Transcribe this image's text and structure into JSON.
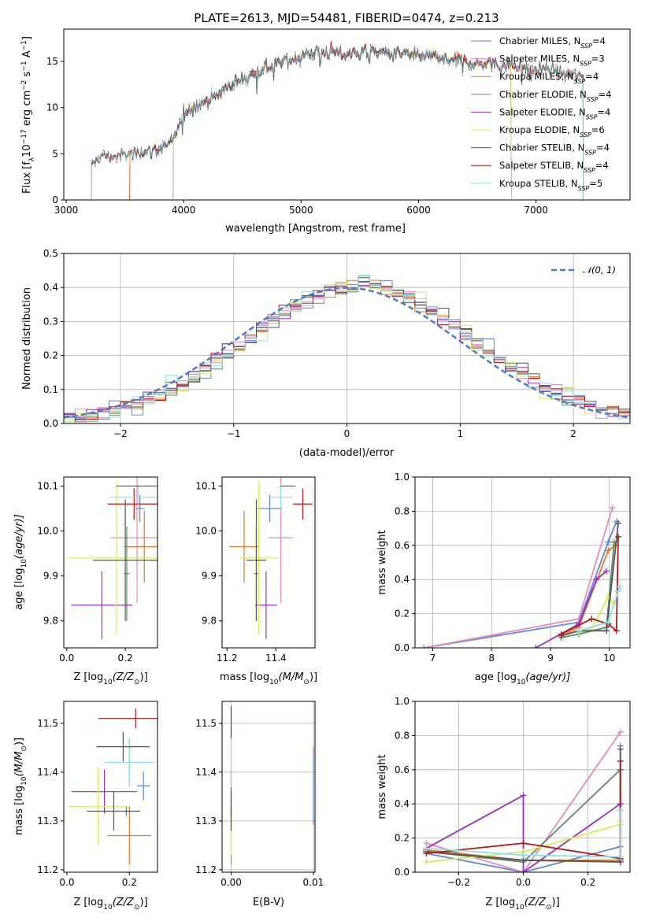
{
  "colors": {
    "Chabrier MILES": "#5f86d8",
    "Salpeter MILES": "#e58bc0",
    "Kroupa MILES": "#e07a2a",
    "Chabrier ELODIE": "#5c8a6a",
    "Salpeter ELODIE": "#9b30c0",
    "Kroupa ELODIE": "#d8ec5a",
    "Chabrier STELIB": "#555555",
    "Salpeter STELIB": "#b01818",
    "Kroupa STELIB": "#8ee0ea"
  },
  "chart_data": [
    {
      "type": "line",
      "id": "spectrum",
      "title": "PLATE=2613, MJD=54481, FIBERID=0474, z=0.213",
      "xlabel": "wavelength [Angstrom, rest frame]",
      "ylabel": "Flux [f",
      "ylabel_sub": "λ",
      "ylabel_rest": "10",
      "ylabel_exp1": "−17",
      "ylabel_unit": " erg cm",
      "ylabel_exp2": "−2",
      "ylabel_s": " s",
      "ylabel_exp3": "−1",
      "ylabel_A": " A",
      "ylabel_exp4": "−1",
      "ylabel_end": "]",
      "xlim": [
        2980,
        7800
      ],
      "ylim": [
        0,
        18.5
      ],
      "xticks": [
        "3000",
        "4000",
        "5000",
        "6000",
        "7000"
      ],
      "yticks": [
        "0",
        "5",
        "10",
        "15"
      ],
      "grid": false,
      "legend_position": "upper-right",
      "legend": [
        {
          "model": "Chabrier MILES",
          "label": "Chabrier MILES, N",
          "sub": "SSP",
          "tail": "=4"
        },
        {
          "model": "Salpeter MILES",
          "label": "Salpeter MILES, N",
          "sub": "SSP",
          "tail": "=3"
        },
        {
          "model": "Kroupa MILES",
          "label": "Kroupa MILES, N",
          "sub": "SSP",
          "tail": "=4"
        },
        {
          "model": "Chabrier ELODIE",
          "label": "Chabrier ELODIE, N",
          "sub": "SSP",
          "tail": "=4"
        },
        {
          "model": "Salpeter ELODIE",
          "label": "Salpeter ELODIE, N",
          "sub": "SSP",
          "tail": "=4"
        },
        {
          "model": "Kroupa ELODIE",
          "label": "Kroupa ELODIE, N",
          "sub": "SSP",
          "tail": "=6"
        },
        {
          "model": "Chabrier STELIB",
          "label": "Chabrier STELIB, N",
          "sub": "SSP",
          "tail": "=4"
        },
        {
          "model": "Salpeter STELIB",
          "label": "Salpeter STELIB, N",
          "sub": "SSP",
          "tail": "=4"
        },
        {
          "model": "Kroupa STELIB",
          "label": "Kroupa STELIB, N",
          "sub": "SSP",
          "tail": "=5"
        }
      ],
      "continuum": {
        "x": [
          3215,
          3300,
          3400,
          3500,
          3600,
          3700,
          3800,
          3900,
          3950,
          4000,
          4100,
          4200,
          4300,
          4400,
          4500,
          4600,
          4700,
          4800,
          4900,
          5000,
          5100,
          5200,
          5300,
          5400,
          5500,
          5600,
          5700,
          5800,
          5900,
          6000,
          6100,
          6200,
          6300,
          6400,
          6500,
          6600,
          6700,
          6800,
          6900,
          7000,
          7100,
          7200,
          7300,
          7400
        ],
        "y": [
          3.6,
          4.8,
          4.7,
          4.8,
          5.2,
          5.3,
          5.6,
          6.2,
          7.5,
          9.5,
          10.2,
          10.8,
          11.5,
          12.5,
          13.0,
          13.8,
          14.2,
          14.8,
          15.2,
          15.6,
          15.9,
          16.1,
          15.9,
          15.8,
          16.0,
          16.1,
          16.0,
          15.8,
          15.8,
          15.5,
          15.7,
          15.3,
          15.1,
          15.0,
          14.7,
          14.9,
          14.5,
          14.7,
          14.3,
          14.2,
          14.2,
          13.8,
          13.6,
          13.4
        ]
      },
      "model_ranges": {
        "Chabrier MILES": [
          3540,
          7410
        ],
        "Salpeter MILES": [
          3540,
          7410
        ],
        "Kroupa MILES": [
          3540,
          7410
        ],
        "Chabrier ELODIE": [
          3910,
          6790
        ],
        "Salpeter ELODIE": [
          3910,
          6790
        ],
        "Kroupa ELODIE": [
          3910,
          6790
        ],
        "Chabrier STELIB": [
          3215,
          7400
        ],
        "Salpeter STELIB": [
          3215,
          7400
        ],
        "Kroupa STELIB": [
          3215,
          7400
        ]
      }
    },
    {
      "type": "bar",
      "id": "residual-histogram",
      "xlabel": "(data-model)/error",
      "ylabel": "Normed distribution",
      "xlim": [
        -2.5,
        2.5
      ],
      "ylim": [
        0,
        0.5
      ],
      "xticks": [
        "−2",
        "−1",
        "0",
        "1",
        "2"
      ],
      "yticks": [
        "0.0",
        "0.1",
        "0.2",
        "0.3",
        "0.4",
        "0.5"
      ],
      "grid": true,
      "legend_position": "upper-right",
      "reference_label": "𝒩(0, 1)",
      "bin_width": 0.1,
      "n_bins": 50
    },
    {
      "type": "scatter",
      "id": "age-vs-Z",
      "xlabel": "Z [log",
      "xlabel_sub": "10",
      "xlabel_tail": "(Z/Z",
      "xlabel_sun": "⊙",
      "xlabel_end": ")]",
      "ylabel": "age  [log",
      "ylabel_sub": "10",
      "ylabel_tail": "(age/yr)]",
      "xlim": [
        -0.01,
        0.31
      ],
      "ylim": [
        9.74,
        10.12
      ],
      "xticks": [
        "0.0",
        "0.2"
      ],
      "yticks": [
        "9.8",
        "9.9",
        "10.0",
        "10.1"
      ],
      "points": [
        {
          "model": "Chabrier MILES",
          "x": 0.25,
          "xerr": 0.015,
          "y": 10.05,
          "yerr": 0.03
        },
        {
          "model": "Salpeter MILES",
          "x": 0.24,
          "xerr": 0.09,
          "y": 9.985,
          "yerr": 0.145
        },
        {
          "model": "Kroupa MILES",
          "x": 0.265,
          "xerr": 0.07,
          "y": 9.965,
          "yerr": 0.08
        },
        {
          "model": "Chabrier ELODIE",
          "x": 0.205,
          "xerr": 0.01,
          "y": 9.905,
          "yerr": 0.105
        },
        {
          "model": "Salpeter ELODIE",
          "x": 0.12,
          "xerr": 0.105,
          "y": 9.835,
          "yerr": 0.075
        },
        {
          "model": "Kroupa ELODIE",
          "x": 0.17,
          "xerr": 0.165,
          "y": 9.94,
          "yerr": 0.17
        },
        {
          "model": "Chabrier STELIB",
          "x": 0.2,
          "xerr": 0.11,
          "y": 9.935,
          "yerr": 0.135
        },
        {
          "model": "Salpeter STELIB",
          "x": 0.23,
          "xerr": 0.09,
          "y": 10.06,
          "yerr": 0.035
        },
        {
          "model": "Kroupa STELIB",
          "x": 0.245,
          "xerr": 0.1,
          "y": 10.075,
          "yerr": 0.025
        },
        {
          "model": "Chabrier STELIB",
          "x": 0.245,
          "xerr": 0.075,
          "y": 10.1,
          "yerr": 0.001
        }
      ]
    },
    {
      "type": "scatter",
      "id": "age-vs-mass",
      "xlabel": "mass [log",
      "xlabel_sub": "10",
      "xlabel_tail": "(M/M",
      "xlabel_sun": "⊙",
      "xlabel_end": ")]",
      "xlim": [
        11.18,
        11.56
      ],
      "ylim": [
        9.74,
        10.12
      ],
      "xticks": [
        "11.2",
        "11.4"
      ],
      "yticks": [
        "9.8",
        "9.9",
        "10.0",
        "10.1"
      ],
      "points": [
        {
          "model": "Chabrier MILES",
          "x": 11.375,
          "xerr": 0.05,
          "y": 10.05,
          "yerr": 0.03
        },
        {
          "model": "Salpeter MILES",
          "x": 11.42,
          "xerr": 0.05,
          "y": 9.985,
          "yerr": 0.145
        },
        {
          "model": "Kroupa MILES",
          "x": 11.27,
          "xerr": 0.06,
          "y": 9.965,
          "yerr": 0.08
        },
        {
          "model": "Chabrier ELODIE",
          "x": 11.32,
          "xerr": 0.01,
          "y": 9.905,
          "yerr": 0.105
        },
        {
          "model": "Salpeter ELODIE",
          "x": 11.36,
          "xerr": 0.045,
          "y": 9.835,
          "yerr": 0.075
        },
        {
          "model": "Kroupa ELODIE",
          "x": 11.33,
          "xerr": 0.08,
          "y": 9.94,
          "yerr": 0.17
        },
        {
          "model": "Chabrier STELIB",
          "x": 11.32,
          "xerr": 0.04,
          "y": 9.935,
          "yerr": 0.135
        },
        {
          "model": "Salpeter STELIB",
          "x": 11.51,
          "xerr": 0.04,
          "y": 10.06,
          "yerr": 0.035
        },
        {
          "model": "Kroupa STELIB",
          "x": 11.42,
          "xerr": 0.05,
          "y": 10.075,
          "yerr": 0.025
        },
        {
          "model": "Chabrier STELIB",
          "x": 11.45,
          "xerr": 0.03,
          "y": 10.1,
          "yerr": 0.001
        }
      ]
    },
    {
      "type": "line",
      "id": "weight-vs-age",
      "xlabel": "age  [log",
      "xlabel_sub": "10",
      "xlabel_tail": "(age/yr)]",
      "ylabel": "mass weight",
      "xlim": [
        6.7,
        10.35
      ],
      "ylim": [
        0,
        1.0
      ],
      "xticks": [
        "7",
        "8",
        "9",
        "10"
      ],
      "yticks": [
        "0.0",
        "0.2",
        "0.4",
        "0.6",
        "0.8",
        "1.0"
      ],
      "grid": true,
      "series": [
        {
          "model": "Chabrier MILES",
          "x": [
            6.85,
            9.48,
            9.98,
            10.12
          ],
          "y": [
            0.0,
            0.15,
            0.62,
            0.74
          ]
        },
        {
          "model": "Salpeter MILES",
          "x": [
            6.85,
            9.48,
            10.05
          ],
          "y": [
            0.0,
            0.17,
            0.82
          ]
        },
        {
          "model": "Kroupa MILES",
          "x": [
            9.18,
            9.48,
            9.98,
            10.1
          ],
          "y": [
            0.07,
            0.12,
            0.57,
            0.6
          ]
        },
        {
          "model": "Chabrier ELODIE",
          "x": [
            9.18,
            9.48,
            9.95,
            10.08
          ],
          "y": [
            0.06,
            0.08,
            0.12,
            0.62
          ]
        },
        {
          "model": "Salpeter ELODIE",
          "x": [
            8.75,
            9.48,
            9.78,
            9.95
          ],
          "y": [
            0.0,
            0.14,
            0.4,
            0.45
          ]
        },
        {
          "model": "Kroupa ELODIE",
          "x": [
            9.48,
            9.7,
            9.98,
            10.08
          ],
          "y": [
            0.09,
            0.11,
            0.3,
            0.26
          ]
        },
        {
          "model": "Chabrier STELIB",
          "x": [
            9.18,
            9.48,
            9.95,
            10.15
          ],
          "y": [
            0.07,
            0.1,
            0.1,
            0.73
          ]
        },
        {
          "model": "Salpeter STELIB",
          "x": [
            9.18,
            9.7,
            9.98,
            10.12,
            10.15
          ],
          "y": [
            0.08,
            0.17,
            0.14,
            0.1,
            0.65
          ]
        },
        {
          "model": "Kroupa STELIB",
          "x": [
            9.48,
            9.98,
            10.15,
            10.18
          ],
          "y": [
            0.1,
            0.15,
            0.33,
            0.36
          ]
        }
      ]
    },
    {
      "type": "scatter",
      "id": "mass-vs-Z",
      "xlabel": "Z [log",
      "xlabel_sub": "10",
      "xlabel_tail": "(Z/Z",
      "xlabel_sun": "⊙",
      "xlabel_end": ")]",
      "ylabel": "mass [log",
      "ylabel_sub": "10",
      "ylabel_tail": "(M/M",
      "ylabel_sun": "⊙",
      "ylabel_end": ")]",
      "xlim": [
        -0.01,
        0.29
      ],
      "ylim": [
        11.195,
        11.545
      ],
      "xticks": [
        "0.0",
        "0.2"
      ],
      "yticks": [
        "11.2",
        "11.3",
        "11.4",
        "11.5"
      ],
      "points": [
        {
          "model": "Chabrier MILES",
          "x": 0.245,
          "xerr": 0.02,
          "y": 11.372,
          "yerr": 0.03
        },
        {
          "model": "Salpeter MILES",
          "x": 0.2,
          "xerr": 0.07,
          "y": 11.42,
          "yerr": 0.05
        },
        {
          "model": "Kroupa MILES",
          "x": 0.2,
          "xerr": 0.07,
          "y": 11.27,
          "yerr": 0.06
        },
        {
          "model": "Chabrier ELODIE",
          "x": 0.19,
          "xerr": 0.01,
          "y": 11.32,
          "yerr": 0.01
        },
        {
          "model": "Salpeter ELODIE",
          "x": 0.12,
          "xerr": 0.105,
          "y": 11.36,
          "yerr": 0.045
        },
        {
          "model": "Kroupa ELODIE",
          "x": 0.1,
          "xerr": 0.095,
          "y": 11.33,
          "yerr": 0.08
        },
        {
          "model": "Chabrier STELIB",
          "x": 0.15,
          "xerr": 0.085,
          "y": 11.32,
          "yerr": 0.04
        },
        {
          "model": "Salpeter STELIB",
          "x": 0.22,
          "xerr": 0.12,
          "y": 11.51,
          "yerr": 0.02
        },
        {
          "model": "Kroupa STELIB",
          "x": 0.2,
          "xerr": 0.08,
          "y": 11.42,
          "yerr": 0.05
        },
        {
          "model": "Chabrier STELIB",
          "x": 0.18,
          "xerr": 0.085,
          "y": 11.452,
          "yerr": 0.03
        }
      ]
    },
    {
      "type": "scatter",
      "id": "mass-vs-EBV",
      "xlabel": "E(B-V)",
      "xlim": [
        -0.0011,
        0.0102
      ],
      "ylim": [
        11.195,
        11.545
      ],
      "xticks": [
        "0.00",
        "0.01"
      ],
      "yticks": [
        "11.2",
        "11.3",
        "11.4",
        "11.5"
      ],
      "points": [
        {
          "model": "Chabrier MILES",
          "x": 0.01,
          "xerr": 0,
          "y": 11.372,
          "yerr": 0.08
        },
        {
          "model": "Salpeter MILES",
          "x": 0.0,
          "xerr": 0,
          "y": 11.42,
          "yerr": 0.05
        },
        {
          "model": "Kroupa MILES",
          "x": 0.0,
          "xerr": 0,
          "y": 11.27,
          "yerr": 0.06
        },
        {
          "model": "Chabrier ELODIE",
          "x": 0.0,
          "xerr": 0,
          "y": 11.32,
          "yerr": 0.01
        },
        {
          "model": "Salpeter ELODIE",
          "x": 0.0,
          "xerr": 0,
          "y": 11.36,
          "yerr": 0.045
        },
        {
          "model": "Kroupa ELODIE",
          "x": 0.0,
          "xerr": 0,
          "y": 11.29,
          "yerr": 0.06
        },
        {
          "model": "Chabrier STELIB",
          "x": 0.0,
          "xerr": 0,
          "y": 11.32,
          "yerr": 0.04
        },
        {
          "model": "Salpeter STELIB",
          "x": 0.0,
          "xerr": 0,
          "y": 11.5,
          "yerr": 0.035
        },
        {
          "model": "Kroupa STELIB",
          "x": 0.0,
          "xerr": 0,
          "y": 11.42,
          "yerr": 0.05
        }
      ]
    },
    {
      "type": "line",
      "id": "weight-vs-Z",
      "xlabel": "Z [log",
      "xlabel_sub": "10",
      "xlabel_tail": "(Z/Z",
      "xlabel_sun": "⊙",
      "xlabel_end": ")]",
      "ylabel": "mass weight",
      "xlim": [
        -0.335,
        0.33
      ],
      "ylim": [
        0,
        1.0
      ],
      "xticks": [
        "−0.2",
        "0.0",
        "0.2"
      ],
      "yticks": [
        "0.0",
        "0.2",
        "0.4",
        "0.6",
        "0.8",
        "1.0"
      ],
      "grid": true,
      "series": [
        {
          "model": "Chabrier MILES",
          "x": [
            -0.3,
            0.0,
            0.3,
            0.3,
            0.3
          ],
          "y": [
            0.11,
            0.0,
            0.15,
            0.36,
            0.74
          ]
        },
        {
          "model": "Salpeter MILES",
          "x": [
            -0.3,
            0.0,
            0.3
          ],
          "y": [
            0.17,
            0.0,
            0.82
          ]
        },
        {
          "model": "Kroupa MILES",
          "x": [
            -0.3,
            0.0,
            0.3,
            0.3
          ],
          "y": [
            0.13,
            0.07,
            0.07,
            0.6
          ]
        },
        {
          "model": "Chabrier ELODIE",
          "x": [
            -0.3,
            0.0,
            0.3,
            0.3
          ],
          "y": [
            0.12,
            0.06,
            0.6,
            0.07
          ]
        },
        {
          "model": "Salpeter ELODIE",
          "x": [
            -0.3,
            0.0,
            0.0,
            0.3,
            0.3
          ],
          "y": [
            0.14,
            0.45,
            0.0,
            0.4,
            0.06
          ]
        },
        {
          "model": "Kroupa ELODIE",
          "x": [
            -0.3,
            0.0,
            0.3,
            0.3
          ],
          "y": [
            0.06,
            0.12,
            0.28,
            0.3
          ]
        },
        {
          "model": "Chabrier STELIB",
          "x": [
            -0.3,
            0.0,
            0.3,
            0.3
          ],
          "y": [
            0.12,
            0.07,
            0.06,
            0.72
          ]
        },
        {
          "model": "Salpeter STELIB",
          "x": [
            -0.3,
            0.0,
            0.3,
            0.3
          ],
          "y": [
            0.11,
            0.17,
            0.08,
            0.65
          ]
        },
        {
          "model": "Kroupa STELIB",
          "x": [
            -0.3,
            0.0,
            0.3,
            0.3
          ],
          "y": [
            0.14,
            0.1,
            0.09,
            0.36
          ]
        }
      ]
    }
  ]
}
